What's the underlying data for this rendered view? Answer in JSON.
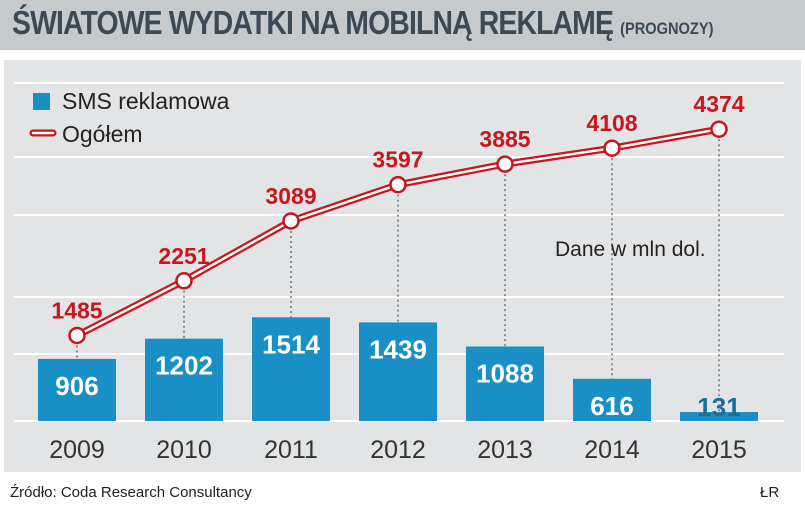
{
  "header": {
    "title": "ŚWIATOWE WYDATKI NA MOBILNĄ REKLAMĘ",
    "subtitle": "(PROGNOZY)"
  },
  "note": "Dane w mln dol.",
  "footer": {
    "source": "Źródło: Coda Research Consultancy",
    "credit": "ŁR"
  },
  "colors": {
    "bar": "#1a8fc6",
    "line": "#c8161d",
    "panel": "#e2e4e6",
    "gridline": "#ffffff"
  },
  "chart_data": {
    "type": "bar",
    "categories": [
      "2009",
      "2010",
      "2011",
      "2012",
      "2013",
      "2014",
      "2015"
    ],
    "series": [
      {
        "name": "SMS reklamowa",
        "type": "bar",
        "values": [
          906,
          1202,
          1514,
          1439,
          1088,
          616,
          131
        ]
      },
      {
        "name": "Ogółem",
        "type": "line",
        "values": [
          1485,
          2251,
          3089,
          3597,
          3885,
          4108,
          4374
        ]
      }
    ],
    "title": "ŚWIATOWE WYDATKI NA MOBILNĄ REKLAMĘ (PROGNOZY)",
    "xlabel": "",
    "ylabel": "",
    "grid": true,
    "legend": "top-left"
  }
}
